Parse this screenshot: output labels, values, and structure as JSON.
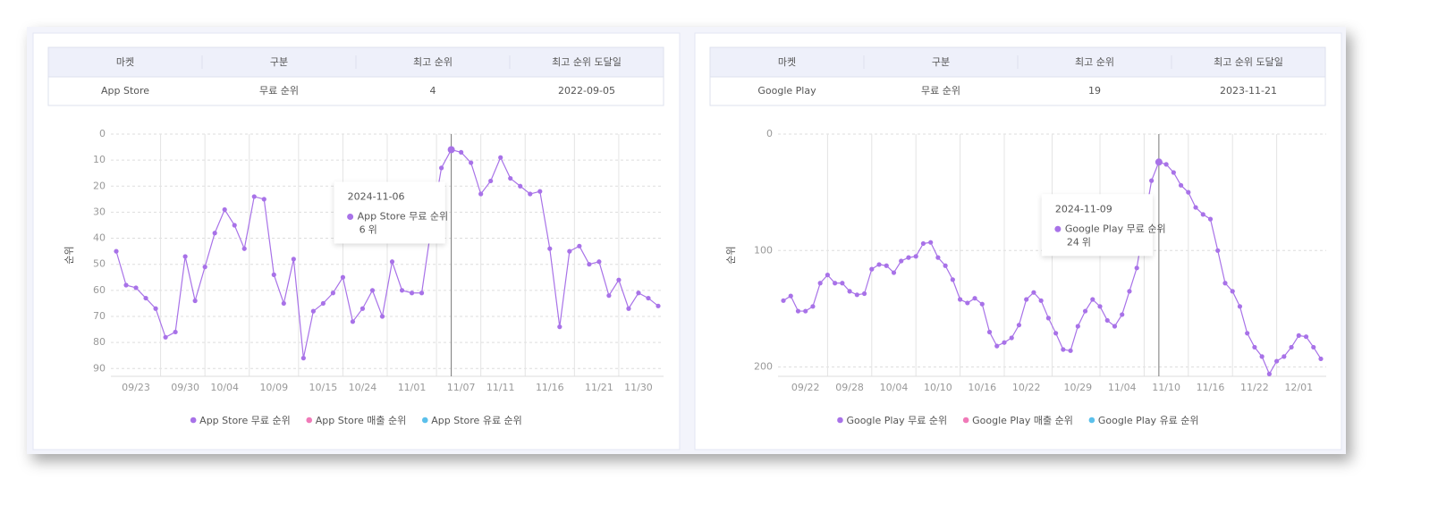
{
  "tables": [
    {
      "headers": [
        "마켓",
        "구분",
        "최고 순위",
        "최고 순위 도달일"
      ],
      "rows": [
        [
          "App Store",
          "무료 순위",
          4,
          "2022-09-05"
        ]
      ]
    },
    {
      "headers": [
        "마켓",
        "구분",
        "최고 순위",
        "최고 순위 도달일"
      ],
      "rows": [
        [
          "Google Play",
          "무료 순위",
          19,
          "2023-11-21"
        ]
      ]
    }
  ],
  "chart_data": [
    {
      "type": "line",
      "y_label": "순위",
      "y_inverted": true,
      "grid": true,
      "ylim": [
        0,
        93
      ],
      "yticks": [
        0,
        10,
        20,
        30,
        40,
        50,
        60,
        70,
        80,
        90
      ],
      "categories": [
        null,
        null,
        "09/23",
        null,
        null,
        null,
        null,
        "09/30",
        null,
        null,
        null,
        "10/04",
        null,
        null,
        null,
        null,
        "10/09",
        null,
        null,
        null,
        null,
        "10/15",
        null,
        null,
        null,
        "10/24",
        null,
        null,
        null,
        null,
        "11/01",
        null,
        null,
        null,
        null,
        "11/07",
        null,
        null,
        null,
        "11/11",
        null,
        null,
        null,
        null,
        "11/16",
        null,
        null,
        null,
        null,
        "11/21",
        null,
        null,
        null,
        "11/30",
        null,
        null
      ],
      "series": [
        {
          "name": "App Store 무료 순위",
          "color": "#a872e8",
          "values": [
            45,
            58,
            59,
            63,
            67,
            78,
            76,
            47,
            64,
            51,
            38,
            29,
            35,
            44,
            24,
            25,
            54,
            65,
            48,
            86,
            68,
            65,
            61,
            55,
            72,
            67,
            60,
            70,
            49,
            60,
            61,
            61,
            35,
            13,
            6,
            7,
            11,
            23,
            18,
            9,
            17,
            20,
            23,
            22,
            44,
            74,
            45,
            43,
            50,
            49,
            62,
            56,
            67,
            61,
            63,
            66
          ]
        },
        {
          "name": "App Store 매출 순위",
          "color": "#f07ab8",
          "values": [
            null,
            null,
            null,
            null,
            null,
            null,
            null,
            null,
            null,
            null,
            null,
            null,
            null,
            null,
            null,
            null,
            null,
            null,
            null,
            null,
            null,
            null,
            null,
            null,
            null,
            null,
            null,
            null,
            null,
            null,
            null,
            null,
            null,
            null,
            null,
            null,
            null,
            null,
            null,
            null,
            null,
            null,
            null,
            null,
            null,
            null,
            null,
            null,
            null,
            null,
            null,
            null,
            null,
            null,
            null,
            null
          ]
        },
        {
          "name": "App Store 유료 순위",
          "color": "#5bc0eb",
          "values": [
            null,
            null,
            null,
            null,
            null,
            null,
            null,
            null,
            null,
            null,
            null,
            null,
            null,
            null,
            null,
            null,
            null,
            null,
            null,
            null,
            null,
            null,
            null,
            null,
            null,
            null,
            null,
            null,
            null,
            null,
            null,
            null,
            null,
            null,
            null,
            null,
            null,
            null,
            null,
            null,
            null,
            null,
            null,
            null,
            null,
            null,
            null,
            null,
            null,
            null,
            null,
            null,
            null,
            null,
            null,
            null
          ]
        }
      ],
      "tooltip": {
        "title": "2024-11-06",
        "series": "App Store 무료 순위",
        "value": 6,
        "unit": "위"
      }
    },
    {
      "type": "line",
      "y_label": "순위",
      "y_inverted": true,
      "grid": true,
      "ylim": [
        0,
        208
      ],
      "yticks": [
        0,
        100,
        200
      ],
      "categories": [
        null,
        null,
        null,
        "09/22",
        null,
        null,
        null,
        null,
        null,
        "09/28",
        null,
        null,
        null,
        null,
        null,
        "10/04",
        null,
        null,
        null,
        null,
        null,
        "10/10",
        null,
        null,
        null,
        null,
        null,
        "10/16",
        null,
        null,
        null,
        null,
        null,
        "10/22",
        null,
        null,
        null,
        null,
        null,
        null,
        "10/29",
        null,
        null,
        null,
        null,
        null,
        "11/04",
        null,
        null,
        null,
        null,
        null,
        "11/10",
        null,
        null,
        null,
        null,
        null,
        "11/16",
        null,
        null,
        null,
        null,
        null,
        "11/22",
        null,
        null,
        null,
        null,
        null,
        "12/01",
        null,
        null,
        null
      ],
      "series": [
        {
          "name": "Google Play 무료 순위",
          "color": "#a872e8",
          "values": [
            143,
            139,
            152,
            152,
            148,
            128,
            121,
            128,
            128,
            135,
            138,
            137,
            116,
            112,
            113,
            119,
            109,
            106,
            105,
            94,
            93,
            106,
            113,
            125,
            142,
            145,
            141,
            146,
            170,
            182,
            179,
            175,
            164,
            142,
            136,
            143,
            158,
            171,
            185,
            186,
            165,
            152,
            142,
            148,
            160,
            165,
            155,
            135,
            115,
            77,
            40,
            24,
            26,
            33,
            44,
            50,
            63,
            69,
            73,
            100,
            128,
            135,
            148,
            171,
            183,
            191,
            206,
            195,
            191,
            183,
            173,
            174,
            183,
            193
          ]
        },
        {
          "name": "Google Play 매출 순위",
          "color": "#f07ab8",
          "values": [
            null,
            null,
            null,
            null,
            null,
            null,
            null,
            null,
            null,
            null,
            null,
            null,
            null,
            null,
            null,
            null,
            null,
            null,
            null,
            null,
            null,
            null,
            null,
            null,
            null,
            null,
            null,
            null,
            null,
            null,
            null,
            null,
            null,
            null,
            null,
            null,
            null,
            null,
            null,
            null,
            null,
            null,
            null,
            null,
            null,
            null,
            null,
            null,
            null,
            null,
            null,
            null,
            null,
            null,
            null,
            null,
            null,
            null,
            null,
            null,
            null,
            null,
            null,
            null,
            null,
            null,
            null,
            null,
            null,
            null,
            null,
            null,
            null,
            null
          ]
        },
        {
          "name": "Google Play 유료 순위",
          "color": "#5bc0eb",
          "values": [
            null,
            null,
            null,
            null,
            null,
            null,
            null,
            null,
            null,
            null,
            null,
            null,
            null,
            null,
            null,
            null,
            null,
            null,
            null,
            null,
            null,
            null,
            null,
            null,
            null,
            null,
            null,
            null,
            null,
            null,
            null,
            null,
            null,
            null,
            null,
            null,
            null,
            null,
            null,
            null,
            null,
            null,
            null,
            null,
            null,
            null,
            null,
            null,
            null,
            null,
            null,
            null,
            null,
            null,
            null,
            null,
            null,
            null,
            null,
            null,
            null,
            null,
            null,
            null,
            null,
            null,
            null,
            null,
            null,
            null,
            null,
            null,
            null,
            null
          ]
        }
      ],
      "tooltip": {
        "title": "2024-11-09",
        "series": "Google Play 무료 순위",
        "value": 24,
        "unit": "위"
      }
    }
  ]
}
